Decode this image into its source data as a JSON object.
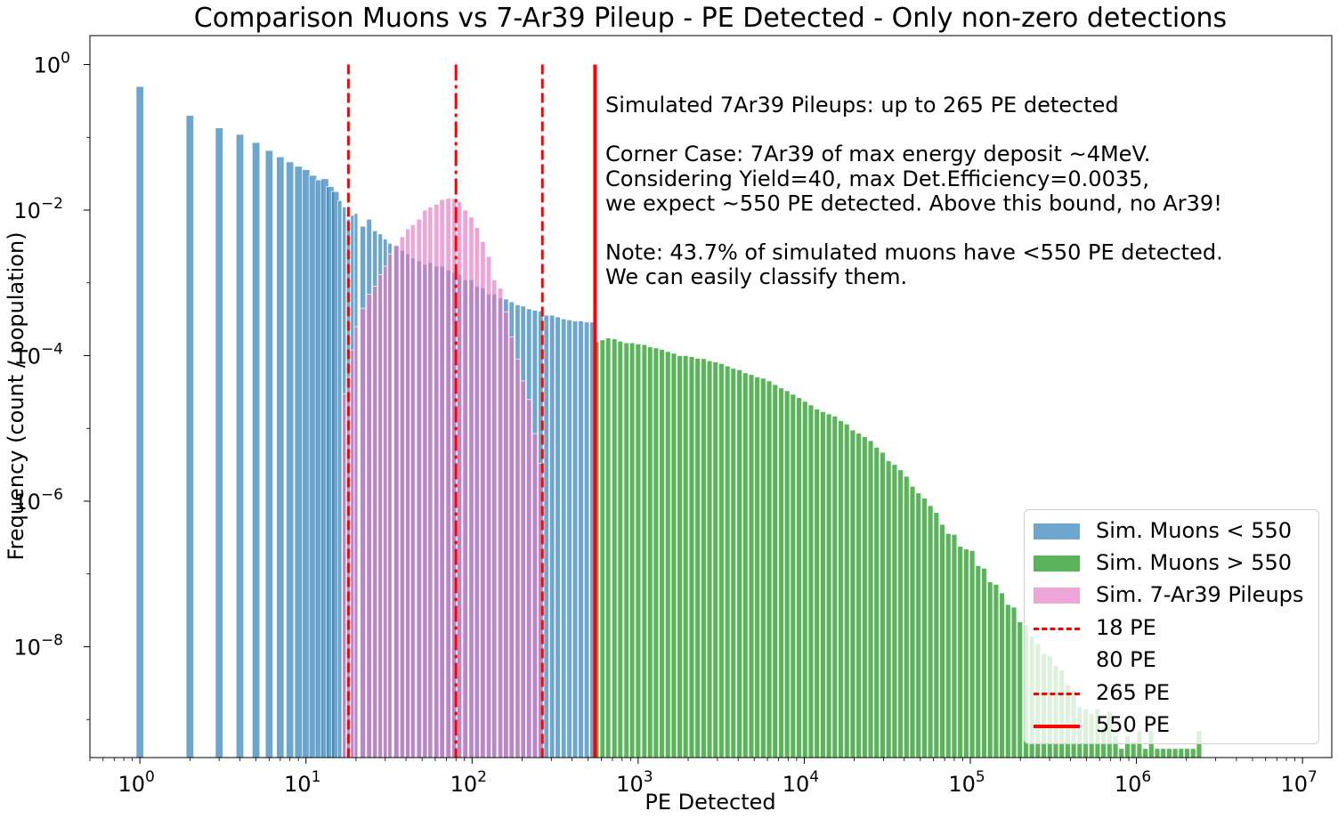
{
  "chart_data": {
    "type": "bar",
    "title": "Comparison Muons vs 7-Ar39 Pileup - PE Detected - Only non-zero detections",
    "xlabel": "PE Detected",
    "ylabel": "Frequency (count / population)",
    "xscale": "log",
    "yscale": "log",
    "xlim": [
      0.5,
      15000000
    ],
    "ylim": [
      3e-10,
      2.5
    ],
    "x_ticks": [
      {
        "base": "10",
        "exp": "0",
        "value": 1
      },
      {
        "base": "10",
        "exp": "1",
        "value": 10
      },
      {
        "base": "10",
        "exp": "2",
        "value": 100
      },
      {
        "base": "10",
        "exp": "3",
        "value": 1000
      },
      {
        "base": "10",
        "exp": "4",
        "value": 10000
      },
      {
        "base": "10",
        "exp": "5",
        "value": 100000
      },
      {
        "base": "10",
        "exp": "6",
        "value": 1000000
      },
      {
        "base": "10",
        "exp": "7",
        "value": 10000000
      }
    ],
    "y_ticks": [
      {
        "base": "10",
        "exp": "0",
        "value": 1
      },
      {
        "base": "10",
        "exp": "−2",
        "value": 0.01
      },
      {
        "base": "10",
        "exp": "−4",
        "value": 0.0001
      },
      {
        "base": "10",
        "exp": "−6",
        "value": 1e-06
      },
      {
        "base": "10",
        "exp": "−8",
        "value": 1e-08
      }
    ],
    "grid": false,
    "legend_position": "lower-right",
    "series": [
      {
        "name": "Sim. Muons < 550",
        "color": "#1f77b4",
        "alpha": 0.65,
        "points": [
          [
            1,
            0.5
          ],
          [
            2,
            0.2
          ],
          [
            3,
            0.135
          ],
          [
            4,
            0.11
          ],
          [
            5,
            0.085
          ],
          [
            6,
            0.066
          ],
          [
            7,
            0.054
          ],
          [
            8,
            0.046
          ],
          [
            9,
            0.04
          ],
          [
            10,
            0.036
          ],
          [
            11,
            0.03
          ],
          [
            12,
            0.026
          ],
          [
            13,
            0.027
          ],
          [
            14,
            0.021
          ],
          [
            15,
            0.018
          ],
          [
            16,
            0.0135
          ],
          [
            17,
            0.011
          ],
          [
            18,
            0.0075
          ],
          [
            19,
            0.0085
          ],
          [
            20,
            0.009
          ],
          [
            22,
            0.006
          ],
          [
            24,
            0.0075
          ],
          [
            26,
            0.0052
          ],
          [
            28,
            0.0047
          ],
          [
            30,
            0.004
          ],
          [
            32,
            0.0035
          ],
          [
            35,
            0.0032
          ],
          [
            38,
            0.0028
          ],
          [
            41,
            0.0025
          ],
          [
            44,
            0.0022
          ],
          [
            48,
            0.002
          ],
          [
            52,
            0.0018
          ],
          [
            56,
            0.0019
          ],
          [
            61,
            0.0017
          ],
          [
            66,
            0.0017
          ],
          [
            72,
            0.0015
          ],
          [
            78,
            0.0014
          ],
          [
            84,
            0.0013
          ],
          [
            91,
            0.0011
          ],
          [
            99,
            0.0011
          ],
          [
            107,
            0.0009
          ],
          [
            116,
            0.00085
          ],
          [
            126,
            0.0007
          ],
          [
            136,
            0.0007
          ],
          [
            148,
            0.00062
          ],
          [
            160,
            0.0006
          ],
          [
            173,
            0.00055
          ],
          [
            188,
            0.0005
          ],
          [
            203,
            0.00048
          ],
          [
            220,
            0.00044
          ],
          [
            239,
            0.00042
          ],
          [
            259,
            0.00041
          ],
          [
            280,
            0.00036
          ],
          [
            303,
            0.00036
          ],
          [
            328,
            0.00034
          ],
          [
            356,
            0.00032
          ],
          [
            385,
            0.00031
          ],
          [
            417,
            0.0003
          ],
          [
            452,
            0.0003
          ],
          [
            490,
            0.00029
          ],
          [
            530,
            0.00029
          ]
        ]
      },
      {
        "name": "Sim. Muons > 550",
        "color": "#2ca02c",
        "alpha": 0.78,
        "points": [
          [
            560,
            0.000155
          ],
          [
            610,
            0.000165
          ],
          [
            660,
            0.000175
          ],
          [
            720,
            0.00017
          ],
          [
            780,
            0.000158
          ],
          [
            850,
            0.00015
          ],
          [
            920,
            0.00015
          ],
          [
            1000,
            0.000145
          ],
          [
            1090,
            0.000142
          ],
          [
            1180,
            0.000132
          ],
          [
            1280,
            0.000128
          ],
          [
            1390,
            0.000122
          ],
          [
            1510,
            0.000114
          ],
          [
            1640,
            0.000108
          ],
          [
            1780,
            0.0001
          ],
          [
            1930,
            0.0001
          ],
          [
            2100,
            9.7e-05
          ],
          [
            2280,
            9.2e-05
          ],
          [
            2480,
            9.1e-05
          ],
          [
            2690,
            8.5e-05
          ],
          [
            2920,
            8.2e-05
          ],
          [
            3170,
            7.8e-05
          ],
          [
            3450,
            7.2e-05
          ],
          [
            3740,
            6.7e-05
          ],
          [
            4070,
            6.4e-05
          ],
          [
            4420,
            5.8e-05
          ],
          [
            4800,
            5.5e-05
          ],
          [
            5210,
            5.1e-05
          ],
          [
            5660,
            4.9e-05
          ],
          [
            6150,
            4.5e-05
          ],
          [
            6680,
            4e-05
          ],
          [
            7260,
            3.6e-05
          ],
          [
            7880,
            3.3e-05
          ],
          [
            8560,
            2.95e-05
          ],
          [
            9300,
            2.65e-05
          ],
          [
            10100,
            2.35e-05
          ],
          [
            10970,
            2.1e-05
          ],
          [
            11920,
            1.85e-05
          ],
          [
            12950,
            1.7e-05
          ],
          [
            14070,
            1.58e-05
          ],
          [
            15280,
            1.48e-05
          ],
          [
            16600,
            1.28e-05
          ],
          [
            18030,
            1.15e-05
          ],
          [
            19590,
            9.5e-06
          ],
          [
            21280,
            8.6e-06
          ],
          [
            23120,
            7.7e-06
          ],
          [
            25110,
            6.8e-06
          ],
          [
            27280,
            5.5e-06
          ],
          [
            29630,
            4.7e-06
          ],
          [
            32190,
            3.6e-06
          ],
          [
            34970,
            3.2e-06
          ],
          [
            37990,
            2.7e-06
          ],
          [
            41270,
            2.2e-06
          ],
          [
            44830,
            1.6e-06
          ],
          [
            48700,
            1.3e-06
          ],
          [
            52900,
            1.1e-06
          ],
          [
            57460,
            8.7e-07
          ],
          [
            62420,
            7e-07
          ],
          [
            67810,
            4.8e-07
          ],
          [
            73660,
            3.6e-07
          ],
          [
            80020,
            3.5e-07
          ],
          [
            86920,
            2.4e-07
          ],
          [
            94420,
            2.2e-07
          ],
          [
            102570,
            2.1e-07
          ],
          [
            111420,
            1.3e-07
          ],
          [
            121040,
            1.2e-07
          ],
          [
            131490,
            7.8e-08
          ],
          [
            142830,
            7.2e-08
          ],
          [
            155160,
            5.5e-08
          ],
          [
            168550,
            3.8e-08
          ],
          [
            183090,
            3.5e-08
          ],
          [
            198890,
            2.2e-08
          ],
          [
            216060,
            2e-08
          ],
          [
            234700,
            1.4e-08
          ],
          [
            254960,
            1.1e-08
          ],
          [
            276960,
            8e-09
          ],
          [
            300860,
            7.5e-09
          ],
          [
            326820,
            5.5e-09
          ],
          [
            355020,
            4.8e-09
          ],
          [
            385660,
            3e-09
          ],
          [
            418940,
            2.5e-09
          ],
          [
            455090,
            1.5e-09
          ],
          [
            494360,
            1.4e-09
          ],
          [
            537020,
            1.2e-09
          ],
          [
            583360,
            1.4e-09
          ],
          [
            633700,
            8e-10
          ],
          [
            688380,
            1.3e-09
          ],
          [
            747780,
            6e-10
          ],
          [
            812310,
            4e-10
          ],
          [
            882410,
            6e-10
          ],
          [
            958550,
            5e-10
          ],
          [
            1041270,
            7e-10
          ],
          [
            1131120,
            4e-10
          ],
          [
            1228730,
            7e-10
          ],
          [
            1334760,
            4e-10
          ],
          [
            1449940,
            4e-10
          ],
          [
            1575060,
            4e-10
          ],
          [
            1710970,
            4e-10
          ],
          [
            1858610,
            4e-10
          ],
          [
            2018990,
            4e-10
          ],
          [
            2193210,
            4e-10
          ],
          [
            2382460,
            7e-10
          ]
        ]
      },
      {
        "name": "Sim. 7-Ar39 Pileups",
        "color": "#e377c2",
        "alpha": 0.65,
        "points": [
          [
            17,
            3e-05
          ],
          [
            18,
            5e-05
          ],
          [
            19,
            0.00012
          ],
          [
            20,
            0.00025
          ],
          [
            22,
            0.00045
          ],
          [
            24,
            0.0007
          ],
          [
            26,
            0.0009
          ],
          [
            28,
            0.0013
          ],
          [
            30,
            0.0017
          ],
          [
            32,
            0.0025
          ],
          [
            35,
            0.0033
          ],
          [
            38,
            0.0043
          ],
          [
            41,
            0.0055
          ],
          [
            44,
            0.0063
          ],
          [
            48,
            0.0075
          ],
          [
            52,
            0.01
          ],
          [
            56,
            0.011
          ],
          [
            61,
            0.012
          ],
          [
            66,
            0.014
          ],
          [
            72,
            0.0145
          ],
          [
            78,
            0.0145
          ],
          [
            84,
            0.013
          ],
          [
            91,
            0.01
          ],
          [
            99,
            0.008
          ],
          [
            107,
            0.0058
          ],
          [
            116,
            0.0037
          ],
          [
            126,
            0.0023
          ],
          [
            136,
            0.0011
          ],
          [
            148,
            0.00085
          ],
          [
            160,
            0.0004
          ],
          [
            173,
            0.00018
          ],
          [
            188,
            9e-05
          ],
          [
            203,
            4.5e-05
          ],
          [
            220,
            2.5e-05
          ],
          [
            239,
            8.5e-06
          ],
          [
            259,
            3.3e-06
          ]
        ]
      }
    ],
    "vlines": [
      {
        "x": 18,
        "label": "18 PE",
        "style": "dashed",
        "color": "#ff0000"
      },
      {
        "x": 80,
        "label": "80 PE",
        "style": "dashdot",
        "color": "#ff0000"
      },
      {
        "x": 265,
        "label": "265 PE",
        "style": "dashed",
        "color": "#ff0000"
      },
      {
        "x": 550,
        "label": "550 PE",
        "style": "solid",
        "color": "#ff0000"
      }
    ],
    "annotation_lines": [
      "Simulated 7Ar39 Pileups: up to 265 PE detected",
      "",
      "Corner Case: 7Ar39 of max energy deposit ~4MeV.",
      "Considering Yield=40, max Det.Efficiency=0.0035,",
      "we expect ~550 PE detected. Above this bound, no Ar39!",
      "",
      "Note: 43.7% of simulated muons have <550 PE detected.",
      "We can easily classify them."
    ]
  }
}
